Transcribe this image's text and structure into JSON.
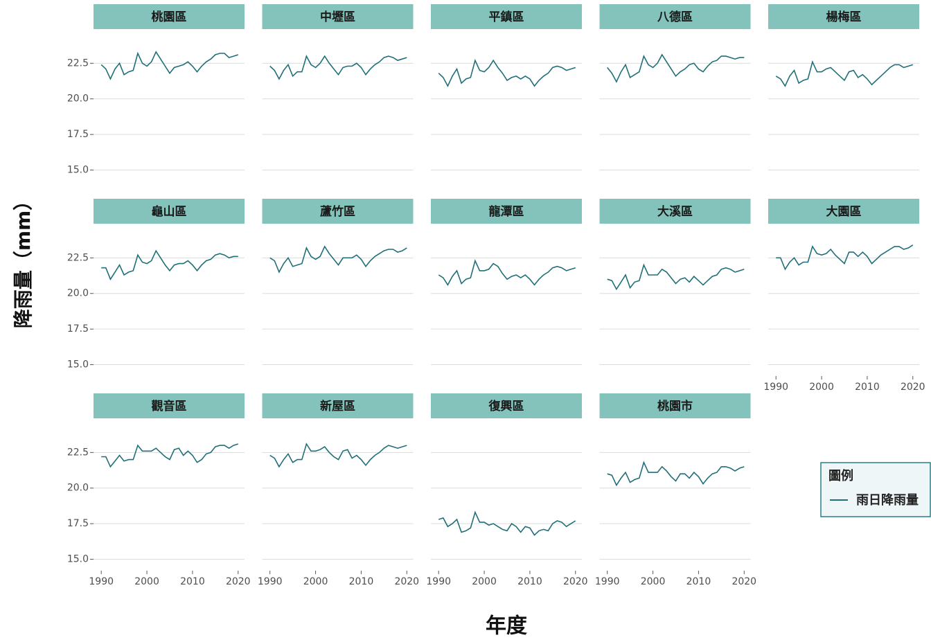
{
  "chart_data": {
    "type": "line",
    "x_label": "年度",
    "y_label": "降雨量（mm）",
    "legend": {
      "title": "圖例",
      "position": "right"
    },
    "series": [
      {
        "name": "雨日降雨量",
        "color": "#1f6f78"
      }
    ],
    "x": [
      1990,
      1991,
      1992,
      1993,
      1994,
      1995,
      1996,
      1997,
      1998,
      1999,
      2000,
      2001,
      2002,
      2003,
      2004,
      2005,
      2006,
      2007,
      2008,
      2009,
      2010,
      2011,
      2012,
      2013,
      2014,
      2015,
      2016,
      2017,
      2018,
      2019,
      2020
    ],
    "xlim": [
      1988.3,
      2021.4
    ],
    "xticks": [
      1990,
      2000,
      2010,
      2020
    ],
    "ylim": [
      14.2,
      24.9
    ],
    "yticks": [
      {
        "value": 15,
        "label": "15.0"
      },
      17.5,
      {
        "value": 20,
        "label": "20.0"
      },
      22.5
    ],
    "grid": true,
    "panels": [
      {
        "title": "桃園區",
        "values": [
          22.4,
          22.1,
          21.4,
          22.1,
          22.5,
          21.7,
          21.9,
          22.0,
          23.2,
          22.5,
          22.3,
          22.6,
          23.3,
          22.8,
          22.3,
          21.8,
          22.2,
          22.3,
          22.4,
          22.6,
          22.3,
          21.9,
          22.3,
          22.6,
          22.8,
          23.1,
          23.2,
          23.2,
          22.9,
          23.0,
          23.1
        ]
      },
      {
        "title": "中壢區",
        "values": [
          22.3,
          22.0,
          21.4,
          22.0,
          22.4,
          21.6,
          21.9,
          21.9,
          23.0,
          22.4,
          22.2,
          22.5,
          23.0,
          22.5,
          22.1,
          21.7,
          22.2,
          22.3,
          22.3,
          22.5,
          22.2,
          21.7,
          22.1,
          22.4,
          22.6,
          22.9,
          23.0,
          22.9,
          22.7,
          22.8,
          22.9
        ]
      },
      {
        "title": "平鎮區",
        "values": [
          21.8,
          21.5,
          20.9,
          21.6,
          22.1,
          21.1,
          21.4,
          21.5,
          22.7,
          22.0,
          21.9,
          22.2,
          22.7,
          22.2,
          21.8,
          21.3,
          21.5,
          21.6,
          21.4,
          21.6,
          21.4,
          20.9,
          21.3,
          21.6,
          21.8,
          22.2,
          22.3,
          22.2,
          22.0,
          22.1,
          22.2
        ]
      },
      {
        "title": "八德區",
        "values": [
          22.2,
          21.8,
          21.2,
          21.9,
          22.4,
          21.5,
          21.7,
          21.9,
          23.0,
          22.4,
          22.2,
          22.5,
          23.1,
          22.6,
          22.1,
          21.6,
          21.9,
          22.1,
          22.4,
          22.5,
          22.1,
          21.9,
          22.3,
          22.6,
          22.7,
          23.0,
          23.0,
          22.9,
          22.8,
          22.9,
          22.9
        ]
      },
      {
        "title": "楊梅區",
        "values": [
          21.6,
          21.4,
          20.9,
          21.6,
          22.0,
          21.1,
          21.3,
          21.4,
          22.6,
          21.9,
          21.9,
          22.1,
          22.2,
          21.9,
          21.6,
          21.3,
          21.9,
          22.0,
          21.5,
          21.7,
          21.4,
          21.0,
          21.3,
          21.6,
          21.9,
          22.2,
          22.4,
          22.4,
          22.2,
          22.3,
          22.4
        ]
      },
      {
        "title": "龜山區",
        "values": [
          21.8,
          21.8,
          21.0,
          21.5,
          22.0,
          21.3,
          21.5,
          21.6,
          22.7,
          22.2,
          22.1,
          22.3,
          23.0,
          22.5,
          22.0,
          21.6,
          22.0,
          22.1,
          22.1,
          22.3,
          22.0,
          21.6,
          22.0,
          22.3,
          22.4,
          22.7,
          22.8,
          22.7,
          22.5,
          22.6,
          22.6
        ]
      },
      {
        "title": "蘆竹區",
        "values": [
          22.5,
          22.3,
          21.5,
          22.1,
          22.5,
          21.9,
          22.0,
          22.1,
          23.2,
          22.6,
          22.4,
          22.6,
          23.3,
          22.8,
          22.4,
          22.0,
          22.5,
          22.5,
          22.5,
          22.7,
          22.4,
          21.9,
          22.3,
          22.6,
          22.8,
          23.0,
          23.1,
          23.1,
          22.9,
          23.0,
          23.2
        ]
      },
      {
        "title": "龍潭區",
        "values": [
          21.3,
          21.1,
          20.6,
          21.2,
          21.6,
          20.7,
          21.0,
          21.1,
          22.3,
          21.6,
          21.6,
          21.7,
          22.1,
          21.9,
          21.4,
          21.0,
          21.2,
          21.3,
          21.1,
          21.3,
          21.0,
          20.6,
          21.0,
          21.3,
          21.5,
          21.8,
          21.9,
          21.8,
          21.6,
          21.7,
          21.8
        ]
      },
      {
        "title": "大溪區",
        "values": [
          21.0,
          20.9,
          20.3,
          20.8,
          21.3,
          20.4,
          20.8,
          20.9,
          22.0,
          21.3,
          21.3,
          21.3,
          21.7,
          21.5,
          21.1,
          20.7,
          21.0,
          21.1,
          20.8,
          21.2,
          20.9,
          20.6,
          20.9,
          21.2,
          21.3,
          21.7,
          21.8,
          21.7,
          21.5,
          21.6,
          21.7
        ]
      },
      {
        "title": "大園區",
        "values": [
          22.5,
          22.5,
          21.7,
          22.2,
          22.5,
          22.0,
          22.2,
          22.2,
          23.3,
          22.8,
          22.7,
          22.8,
          23.1,
          22.7,
          22.4,
          22.1,
          22.9,
          22.9,
          22.6,
          22.9,
          22.6,
          22.1,
          22.4,
          22.7,
          22.9,
          23.1,
          23.3,
          23.3,
          23.1,
          23.2,
          23.4
        ]
      },
      {
        "title": "觀音區",
        "values": [
          22.2,
          22.2,
          21.5,
          21.9,
          22.3,
          21.9,
          22.0,
          22.0,
          23.0,
          22.6,
          22.6,
          22.6,
          22.8,
          22.5,
          22.2,
          22.0,
          22.7,
          22.8,
          22.3,
          22.6,
          22.3,
          21.8,
          22.0,
          22.4,
          22.5,
          22.9,
          23.0,
          23.0,
          22.8,
          23.0,
          23.1
        ]
      },
      {
        "title": "新屋區",
        "values": [
          22.3,
          22.1,
          21.5,
          22.0,
          22.4,
          21.8,
          22.0,
          22.0,
          23.1,
          22.6,
          22.6,
          22.7,
          22.9,
          22.5,
          22.2,
          22.0,
          22.6,
          22.7,
          22.1,
          22.3,
          22.0,
          21.6,
          22.0,
          22.3,
          22.5,
          22.8,
          23.0,
          22.9,
          22.8,
          22.9,
          23.0
        ]
      },
      {
        "title": "復興區",
        "values": [
          17.8,
          17.9,
          17.3,
          17.5,
          17.8,
          16.9,
          17.0,
          17.2,
          18.3,
          17.6,
          17.6,
          17.4,
          17.5,
          17.3,
          17.1,
          17.0,
          17.5,
          17.3,
          16.9,
          17.3,
          17.2,
          16.7,
          17.0,
          17.1,
          17.0,
          17.5,
          17.7,
          17.6,
          17.3,
          17.5,
          17.7
        ]
      },
      {
        "title": "桃園市",
        "values": [
          21.0,
          20.9,
          20.2,
          20.7,
          21.1,
          20.4,
          20.6,
          20.7,
          21.8,
          21.1,
          21.1,
          21.1,
          21.5,
          21.2,
          20.8,
          20.5,
          21.0,
          21.0,
          20.7,
          21.1,
          20.8,
          20.3,
          20.7,
          21.0,
          21.1,
          21.5,
          21.5,
          21.4,
          21.2,
          21.4,
          21.5
        ]
      }
    ]
  }
}
